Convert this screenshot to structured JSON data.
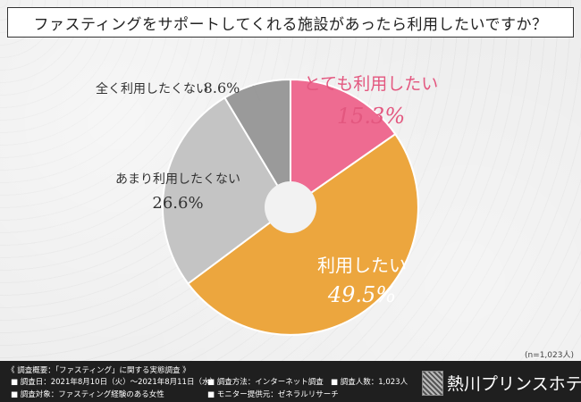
{
  "header": {
    "title": "ファスティングをサポートしてくれる施設があったら利用したいですか？"
  },
  "chart_data": {
    "type": "pie",
    "style": "donut",
    "title": "ファスティングをサポートしてくれる施設があったら利用したいですか？",
    "categories": [
      "とても利用したい",
      "利用したい",
      "あまり利用したくない",
      "全く利用したくない"
    ],
    "values": [
      15.3,
      49.5,
      26.6,
      8.6
    ],
    "value_labels": [
      "15.3%",
      "49.5%",
      "26.6%",
      "8.6%"
    ],
    "unit": "%",
    "colors": [
      "#ee6b91",
      "#eca63e",
      "#c4c4c4",
      "#9a9a9a"
    ],
    "sample_size": "(n=1,023人)"
  },
  "footer": {
    "survey_heading": "《 調査概要：「ファスティング」に関する実態調査 》",
    "items": [
      "■ 調査日：2021年8月10日（火）～2021年8月11日（水）",
      "■ 調査方法：インターネット調査",
      "■ 調査人数：1,023人",
      "■ 調査対象：ファスティング経験のある女性",
      "■ モニター提供元：ゼネラルリサーチ"
    ],
    "logo_text": "熱川プリンスホテル"
  }
}
